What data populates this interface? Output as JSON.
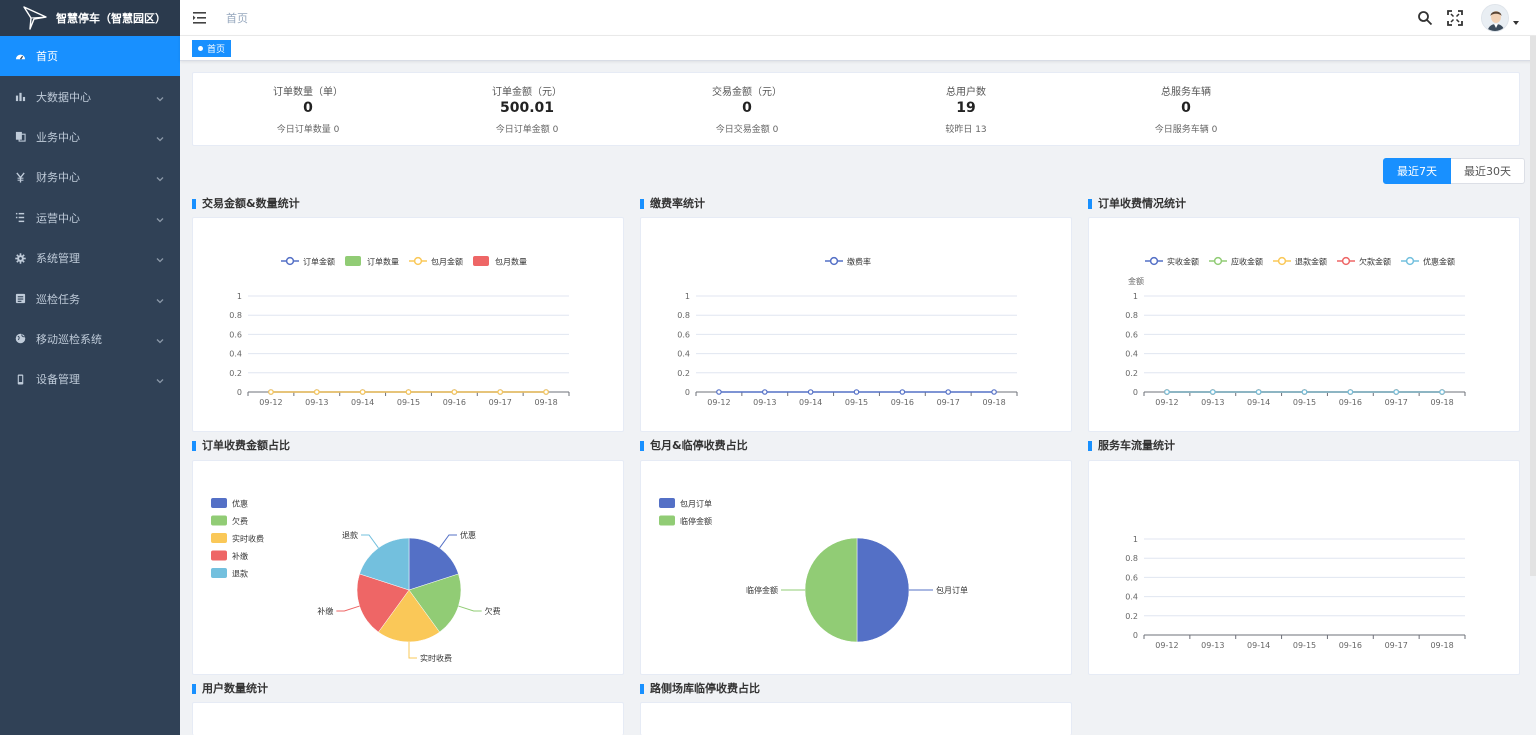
{
  "app": {
    "logo_text": "智慧停车（智慧园区）"
  },
  "sidebar": {
    "items": [
      {
        "label": "首页",
        "icon": "dashboard-icon",
        "active": true
      },
      {
        "label": "大数据中心",
        "icon": "bar-chart-icon"
      },
      {
        "label": "业务中心",
        "icon": "documents-icon"
      },
      {
        "label": "财务中心",
        "icon": "yen-icon"
      },
      {
        "label": "运营中心",
        "icon": "list-icon"
      },
      {
        "label": "系统管理",
        "icon": "gear-icon"
      },
      {
        "label": "巡检任务",
        "icon": "task-icon"
      },
      {
        "label": "移动巡检系统",
        "icon": "globe-icon"
      },
      {
        "label": "设备管理",
        "icon": "phone-icon"
      }
    ]
  },
  "header": {
    "breadcrumb": "首页",
    "tag": "首页"
  },
  "stats": [
    {
      "label": "订单数量（单）",
      "value": "0",
      "sub": "今日订单数量 0"
    },
    {
      "label": "订单金额（元）",
      "value": "500.01",
      "sub": "今日订单金额 0"
    },
    {
      "label": "交易金额（元）",
      "value": "0",
      "sub": "今日交易金额 0"
    },
    {
      "label": "总用户数",
      "value": "19",
      "sub": "较昨日 13"
    },
    {
      "label": "总服务车辆",
      "value": "0",
      "sub": "今日服务车辆 0"
    }
  ],
  "range": {
    "btn7": "最近7天",
    "btn30": "最近30天"
  },
  "sections": {
    "s1": "交易金额&数量统计",
    "s2": "缴费率统计",
    "s3": "订单收费情况统计",
    "s4": "订单收费金额占比",
    "s5": "包月&临停收费占比",
    "s6": "服务车流量统计",
    "s7": "用户数量统计",
    "s8": "路侧场库临停收费占比"
  },
  "chart_data": [
    {
      "title": "交易金额&数量统计",
      "type": "line",
      "x": [
        "09-12",
        "09-13",
        "09-14",
        "09-15",
        "09-16",
        "09-17",
        "09-18"
      ],
      "ylim": [
        0,
        1
      ],
      "yticks": [
        "0",
        "0.2",
        "0.4",
        "0.6",
        "0.8",
        "1"
      ],
      "legend_position": "top-center",
      "series": [
        {
          "name": "订单金额",
          "kind": "line",
          "color": "#5470c6",
          "values": [
            0,
            0,
            0,
            0,
            0,
            0,
            0
          ]
        },
        {
          "name": "订单数量",
          "kind": "bar",
          "color": "#91cc75",
          "values": [
            0,
            0,
            0,
            0,
            0,
            0,
            0
          ]
        },
        {
          "name": "包月金额",
          "kind": "line",
          "color": "#fac858",
          "values": [
            0,
            0,
            0,
            0,
            0,
            0,
            0
          ]
        },
        {
          "name": "包月数量",
          "kind": "bar",
          "color": "#ee6666",
          "values": [
            0,
            0,
            0,
            0,
            0,
            0,
            0
          ]
        }
      ]
    },
    {
      "title": "缴费率统计",
      "type": "line",
      "x": [
        "09-12",
        "09-13",
        "09-14",
        "09-15",
        "09-16",
        "09-17",
        "09-18"
      ],
      "ylim": [
        0,
        1
      ],
      "yticks": [
        "0",
        "0.2",
        "0.4",
        "0.6",
        "0.8",
        "1"
      ],
      "legend_position": "top-center",
      "series": [
        {
          "name": "缴费率",
          "kind": "line",
          "color": "#5470c6",
          "values": [
            0,
            0,
            0,
            0,
            0,
            0,
            0
          ]
        }
      ]
    },
    {
      "title": "订单收费情况统计",
      "type": "line",
      "x": [
        "09-12",
        "09-13",
        "09-14",
        "09-15",
        "09-16",
        "09-17",
        "09-18"
      ],
      "ylabel": "金额",
      "ylim": [
        0,
        1
      ],
      "yticks": [
        "0",
        "0.2",
        "0.4",
        "0.6",
        "0.8",
        "1"
      ],
      "legend_position": "top-center",
      "series": [
        {
          "name": "实收金额",
          "kind": "line",
          "color": "#5470c6",
          "values": [
            0,
            0,
            0,
            0,
            0,
            0,
            0
          ]
        },
        {
          "name": "应收金额",
          "kind": "line",
          "color": "#91cc75",
          "values": [
            0,
            0,
            0,
            0,
            0,
            0,
            0
          ]
        },
        {
          "name": "退款金额",
          "kind": "line",
          "color": "#fac858",
          "values": [
            0,
            0,
            0,
            0,
            0,
            0,
            0
          ]
        },
        {
          "name": "欠款金额",
          "kind": "line",
          "color": "#ee6666",
          "values": [
            0,
            0,
            0,
            0,
            0,
            0,
            0
          ]
        },
        {
          "name": "优惠金额",
          "kind": "line",
          "color": "#73c0de",
          "values": [
            0,
            0,
            0,
            0,
            0,
            0,
            0
          ]
        }
      ]
    },
    {
      "title": "订单收费金额占比",
      "type": "pie",
      "legend_position": "top-left",
      "labels": [
        "优惠",
        "欠费",
        "实时收费",
        "补缴",
        "退款"
      ],
      "values": [
        20,
        20,
        20,
        20,
        20
      ],
      "colors": [
        "#5470c6",
        "#91cc75",
        "#fac858",
        "#ee6666",
        "#73c0de"
      ]
    },
    {
      "title": "包月&临停收费占比",
      "type": "pie",
      "legend_position": "top-left",
      "labels": [
        "包月订单",
        "临停金额"
      ],
      "values": [
        50,
        50
      ],
      "colors": [
        "#5470c6",
        "#91cc75"
      ]
    },
    {
      "title": "服务车流量统计",
      "type": "line",
      "x": [
        "09-12",
        "09-13",
        "09-14",
        "09-15",
        "09-16",
        "09-17",
        "09-18"
      ],
      "ylim": [
        0,
        1
      ],
      "yticks": [
        "0",
        "0.2",
        "0.4",
        "0.6",
        "0.8",
        "1"
      ],
      "series": []
    }
  ]
}
